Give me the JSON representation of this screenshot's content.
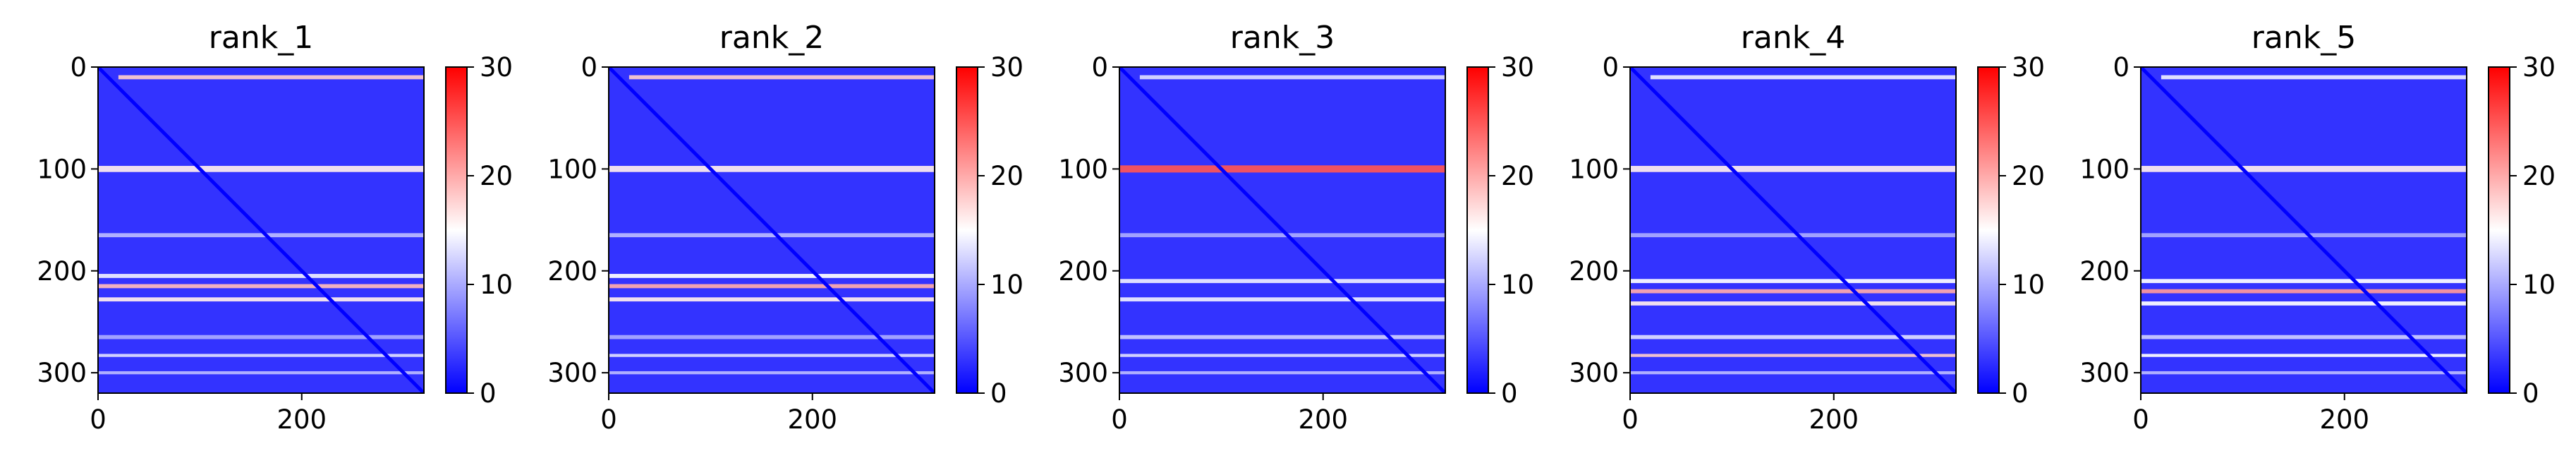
{
  "chart_data": [
    {
      "type": "heatmap",
      "title": "rank_1",
      "xticks": [
        0,
        200
      ],
      "yticks": [
        0,
        100,
        200,
        300
      ],
      "xlim": [
        0,
        320
      ],
      "ylim": [
        320,
        0
      ],
      "colorbar": {
        "ticks": [
          0,
          10,
          20,
          30
        ],
        "range": [
          0,
          30
        ],
        "colormap": "bwr"
      },
      "colormap_colors": [
        "#0000ff",
        "#ffffff",
        "#ff0000"
      ],
      "base_value": 3,
      "diagonal_value": 0,
      "rows": [
        {
          "y": 10,
          "value": 18,
          "width": 4,
          "x_from": 20,
          "x_to": 320
        },
        {
          "y": 100,
          "value": 16,
          "width": 6
        },
        {
          "y": 165,
          "value": 11,
          "width": 4
        },
        {
          "y": 205,
          "value": 14,
          "width": 4
        },
        {
          "y": 215,
          "value": 19,
          "width": 4
        },
        {
          "y": 228,
          "value": 16,
          "width": 4
        },
        {
          "y": 265,
          "value": 10,
          "width": 4
        },
        {
          "y": 283,
          "value": 13,
          "width": 3
        },
        {
          "y": 300,
          "value": 11,
          "width": 3
        }
      ]
    },
    {
      "type": "heatmap",
      "title": "rank_2",
      "xticks": [
        0,
        200
      ],
      "yticks": [
        0,
        100,
        200,
        300
      ],
      "xlim": [
        0,
        320
      ],
      "ylim": [
        320,
        0
      ],
      "colorbar": {
        "ticks": [
          0,
          10,
          20,
          30
        ],
        "range": [
          0,
          30
        ],
        "colormap": "bwr"
      },
      "colormap_colors": [
        "#0000ff",
        "#ffffff",
        "#ff0000"
      ],
      "base_value": 3,
      "diagonal_value": 0,
      "rows": [
        {
          "y": 10,
          "value": 18,
          "width": 4,
          "x_from": 20,
          "x_to": 320
        },
        {
          "y": 100,
          "value": 16,
          "width": 6
        },
        {
          "y": 165,
          "value": 11,
          "width": 4
        },
        {
          "y": 205,
          "value": 15,
          "width": 4
        },
        {
          "y": 215,
          "value": 20,
          "width": 4
        },
        {
          "y": 228,
          "value": 16,
          "width": 4
        },
        {
          "y": 265,
          "value": 10,
          "width": 4
        },
        {
          "y": 283,
          "value": 13,
          "width": 3
        },
        {
          "y": 300,
          "value": 11,
          "width": 3
        }
      ]
    },
    {
      "type": "heatmap",
      "title": "rank_3",
      "xticks": [
        0,
        200
      ],
      "yticks": [
        0,
        100,
        200,
        300
      ],
      "xlim": [
        0,
        320
      ],
      "ylim": [
        320,
        0
      ],
      "colorbar": {
        "ticks": [
          0,
          10,
          20,
          30
        ],
        "range": [
          0,
          30
        ],
        "colormap": "bwr"
      },
      "colormap_colors": [
        "#0000ff",
        "#ffffff",
        "#ff0000"
      ],
      "base_value": 3,
      "diagonal_value": 0,
      "rows": [
        {
          "y": 10,
          "value": 13,
          "width": 4,
          "x_from": 20,
          "x_to": 320
        },
        {
          "y": 100,
          "value": 25,
          "width": 7
        },
        {
          "y": 165,
          "value": 10,
          "width": 4
        },
        {
          "y": 210,
          "value": 14,
          "width": 4
        },
        {
          "y": 228,
          "value": 14,
          "width": 4
        },
        {
          "y": 265,
          "value": 12,
          "width": 4
        },
        {
          "y": 283,
          "value": 13,
          "width": 3
        },
        {
          "y": 300,
          "value": 11,
          "width": 3
        }
      ]
    },
    {
      "type": "heatmap",
      "title": "rank_4",
      "xticks": [
        0,
        200
      ],
      "yticks": [
        0,
        100,
        200,
        300
      ],
      "xlim": [
        0,
        320
      ],
      "ylim": [
        320,
        0
      ],
      "colorbar": {
        "ticks": [
          0,
          10,
          20,
          30
        ],
        "range": [
          0,
          30
        ],
        "colormap": "bwr"
      },
      "colormap_colors": [
        "#0000ff",
        "#ffffff",
        "#ff0000"
      ],
      "base_value": 3,
      "diagonal_value": 0,
      "rows": [
        {
          "y": 10,
          "value": 14,
          "width": 4,
          "x_from": 20,
          "x_to": 320
        },
        {
          "y": 100,
          "value": 16,
          "width": 6
        },
        {
          "y": 165,
          "value": 10,
          "width": 4
        },
        {
          "y": 210,
          "value": 15,
          "width": 4
        },
        {
          "y": 220,
          "value": 20,
          "width": 4
        },
        {
          "y": 232,
          "value": 16,
          "width": 4
        },
        {
          "y": 265,
          "value": 13,
          "width": 4
        },
        {
          "y": 283,
          "value": 18,
          "width": 3
        },
        {
          "y": 300,
          "value": 11,
          "width": 3
        }
      ]
    },
    {
      "type": "heatmap",
      "title": "rank_5",
      "xticks": [
        0,
        200
      ],
      "yticks": [
        0,
        100,
        200,
        300
      ],
      "xlim": [
        0,
        320
      ],
      "ylim": [
        320,
        0
      ],
      "colorbar": {
        "ticks": [
          0,
          10,
          20,
          30
        ],
        "range": [
          0,
          30
        ],
        "colormap": "bwr"
      },
      "colormap_colors": [
        "#0000ff",
        "#ffffff",
        "#ff0000"
      ],
      "base_value": 3,
      "diagonal_value": 0,
      "rows": [
        {
          "y": 10,
          "value": 14,
          "width": 4,
          "x_from": 20,
          "x_to": 320
        },
        {
          "y": 100,
          "value": 16,
          "width": 6
        },
        {
          "y": 165,
          "value": 10,
          "width": 4
        },
        {
          "y": 210,
          "value": 15,
          "width": 4
        },
        {
          "y": 220,
          "value": 21,
          "width": 4
        },
        {
          "y": 232,
          "value": 15,
          "width": 4
        },
        {
          "y": 265,
          "value": 12,
          "width": 4
        },
        {
          "y": 283,
          "value": 15,
          "width": 3
        },
        {
          "y": 300,
          "value": 11,
          "width": 3
        }
      ]
    }
  ]
}
